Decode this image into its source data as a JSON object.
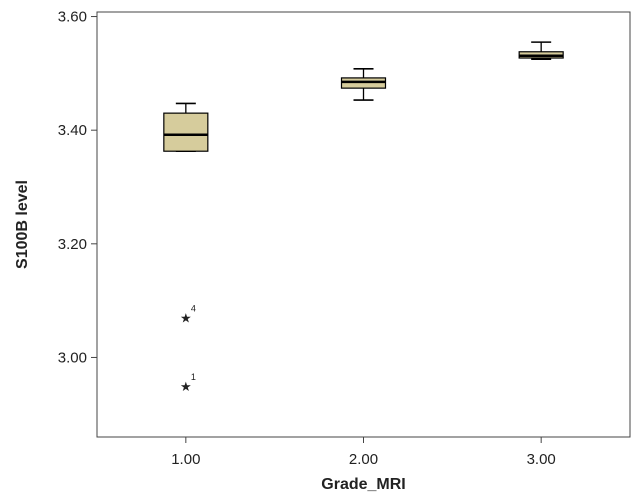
{
  "chart_data": {
    "type": "boxplot",
    "title": "",
    "xlabel": "Grade_MRI",
    "ylabel": "S100B level",
    "ylim": [
      2.86,
      3.608
    ],
    "yticks": [
      "3.00",
      "3.20",
      "3.40",
      "3.60"
    ],
    "ytick_values": [
      3.0,
      3.2,
      3.4,
      3.6
    ],
    "categories": [
      "1.00",
      "2.00",
      "3.00"
    ],
    "grid": false,
    "legend": "none",
    "colors": {
      "box_fill": "#d6cc9c",
      "line": "#000000",
      "frame": "#444444",
      "background": "#ffffff"
    },
    "boxes": [
      {
        "category": "1.00",
        "whisker_low": 3.363,
        "q1": 3.363,
        "median": 3.392,
        "q3": 3.43,
        "whisker_high": 3.447,
        "outliers": [
          {
            "value": 3.07,
            "label": "4"
          },
          {
            "value": 2.95,
            "label": "1"
          }
        ]
      },
      {
        "category": "2.00",
        "whisker_low": 3.453,
        "q1": 3.474,
        "median": 3.485,
        "q3": 3.492,
        "whisker_high": 3.508,
        "outliers": []
      },
      {
        "category": "3.00",
        "whisker_low": 3.525,
        "q1": 3.527,
        "median": 3.531,
        "q3": 3.538,
        "whisker_high": 3.555,
        "outliers": []
      }
    ]
  }
}
